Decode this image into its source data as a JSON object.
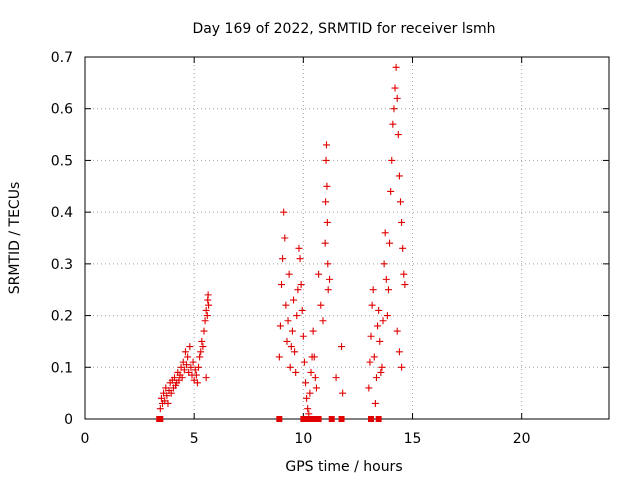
{
  "chart_data": {
    "type": "scatter",
    "title": "Day 169 of 2022, SRMTID for receiver lsmh",
    "xlabel": "GPS time / hours",
    "ylabel": "SRMTID / TECUs",
    "xlim": [
      0,
      24
    ],
    "ylim": [
      0,
      0.7
    ],
    "xticks": [
      0,
      5,
      10,
      15,
      20
    ],
    "yticks": [
      0,
      0.1,
      0.2,
      0.3,
      0.4,
      0.5,
      0.6,
      0.7
    ],
    "xtick_labels": [
      "0",
      "5",
      "10",
      "15",
      "20"
    ],
    "ytick_labels": [
      "0",
      "0.1",
      "0.2",
      "0.3",
      "0.4",
      "0.5",
      "0.6",
      "0.7"
    ],
    "grid": true,
    "marker_color": "#e00000",
    "series": [
      {
        "name": "SRMTID",
        "marker": "plus",
        "points": [
          [
            3.45,
            0.02
          ],
          [
            3.5,
            0.04
          ],
          [
            3.55,
            0.03
          ],
          [
            3.6,
            0.05
          ],
          [
            3.65,
            0.035
          ],
          [
            3.7,
            0.06
          ],
          [
            3.75,
            0.045
          ],
          [
            3.8,
            0.03
          ],
          [
            3.85,
            0.055
          ],
          [
            3.9,
            0.07
          ],
          [
            3.95,
            0.05
          ],
          [
            4.0,
            0.075
          ],
          [
            4.05,
            0.06
          ],
          [
            4.1,
            0.08
          ],
          [
            4.15,
            0.065
          ],
          [
            4.2,
            0.07
          ],
          [
            4.25,
            0.09
          ],
          [
            4.3,
            0.075
          ],
          [
            4.35,
            0.085
          ],
          [
            4.4,
            0.1
          ],
          [
            4.45,
            0.08
          ],
          [
            4.5,
            0.11
          ],
          [
            4.55,
            0.095
          ],
          [
            4.6,
            0.13
          ],
          [
            4.65,
            0.105
          ],
          [
            4.7,
            0.12
          ],
          [
            4.75,
            0.09
          ],
          [
            4.8,
            0.14
          ],
          [
            4.85,
            0.1
          ],
          [
            4.9,
            0.085
          ],
          [
            4.95,
            0.11
          ],
          [
            5.0,
            0.075
          ],
          [
            5.05,
            0.095
          ],
          [
            5.1,
            0.085
          ],
          [
            5.15,
            0.07
          ],
          [
            5.2,
            0.1
          ],
          [
            5.25,
            0.12
          ],
          [
            5.3,
            0.13
          ],
          [
            5.35,
            0.15
          ],
          [
            5.4,
            0.14
          ],
          [
            5.45,
            0.17
          ],
          [
            5.5,
            0.19
          ],
          [
            5.55,
            0.21
          ],
          [
            5.6,
            0.2
          ],
          [
            5.62,
            0.23
          ],
          [
            5.64,
            0.24
          ],
          [
            5.66,
            0.22
          ],
          [
            5.55,
            0.08
          ],
          [
            8.9,
            0.12
          ],
          [
            8.95,
            0.18
          ],
          [
            9.0,
            0.26
          ],
          [
            9.05,
            0.31
          ],
          [
            9.1,
            0.4
          ],
          [
            9.15,
            0.35
          ],
          [
            9.2,
            0.22
          ],
          [
            9.25,
            0.15
          ],
          [
            9.3,
            0.19
          ],
          [
            9.35,
            0.28
          ],
          [
            9.4,
            0.1
          ],
          [
            9.45,
            0.14
          ],
          [
            9.5,
            0.17
          ],
          [
            9.55,
            0.23
          ],
          [
            9.6,
            0.13
          ],
          [
            9.65,
            0.09
          ],
          [
            9.7,
            0.2
          ],
          [
            9.75,
            0.25
          ],
          [
            9.8,
            0.33
          ],
          [
            9.85,
            0.31
          ],
          [
            9.9,
            0.26
          ],
          [
            9.95,
            0.21
          ],
          [
            10.0,
            0.16
          ],
          [
            10.05,
            0.11
          ],
          [
            10.1,
            0.07
          ],
          [
            10.15,
            0.04
          ],
          [
            10.2,
            0.02
          ],
          [
            10.25,
            0.01
          ],
          [
            10.3,
            0.05
          ],
          [
            10.35,
            0.09
          ],
          [
            10.4,
            0.12
          ],
          [
            10.45,
            0.17
          ],
          [
            10.5,
            0.12
          ],
          [
            10.55,
            0.08
          ],
          [
            10.6,
            0.06
          ],
          [
            10.7,
            0.28
          ],
          [
            10.8,
            0.22
          ],
          [
            10.9,
            0.19
          ],
          [
            11.0,
            0.34
          ],
          [
            11.02,
            0.42
          ],
          [
            11.04,
            0.5
          ],
          [
            11.06,
            0.53
          ],
          [
            11.08,
            0.45
          ],
          [
            11.1,
            0.38
          ],
          [
            11.12,
            0.3
          ],
          [
            11.14,
            0.25
          ],
          [
            11.2,
            0.27
          ],
          [
            11.5,
            0.08
          ],
          [
            11.75,
            0.14
          ],
          [
            11.8,
            0.05
          ],
          [
            13.0,
            0.06
          ],
          [
            13.05,
            0.11
          ],
          [
            13.1,
            0.16
          ],
          [
            13.15,
            0.22
          ],
          [
            13.2,
            0.25
          ],
          [
            13.25,
            0.12
          ],
          [
            13.3,
            0.03
          ],
          [
            13.35,
            0.08
          ],
          [
            13.4,
            0.18
          ],
          [
            13.45,
            0.21
          ],
          [
            13.5,
            0.15
          ],
          [
            13.55,
            0.09
          ],
          [
            13.6,
            0.1
          ],
          [
            13.65,
            0.19
          ],
          [
            13.7,
            0.3
          ],
          [
            13.75,
            0.36
          ],
          [
            13.8,
            0.27
          ],
          [
            13.85,
            0.2
          ],
          [
            13.9,
            0.25
          ],
          [
            13.95,
            0.34
          ],
          [
            14.0,
            0.44
          ],
          [
            14.05,
            0.5
          ],
          [
            14.1,
            0.57
          ],
          [
            14.15,
            0.6
          ],
          [
            14.2,
            0.64
          ],
          [
            14.25,
            0.68
          ],
          [
            14.3,
            0.62
          ],
          [
            14.35,
            0.55
          ],
          [
            14.4,
            0.47
          ],
          [
            14.45,
            0.42
          ],
          [
            14.5,
            0.38
          ],
          [
            14.55,
            0.33
          ],
          [
            14.6,
            0.28
          ],
          [
            14.65,
            0.26
          ],
          [
            14.3,
            0.17
          ],
          [
            14.4,
            0.13
          ],
          [
            14.5,
            0.1
          ]
        ]
      },
      {
        "name": "zero",
        "marker": "square",
        "points": [
          [
            3.4,
            0
          ],
          [
            3.45,
            0
          ],
          [
            8.9,
            0
          ],
          [
            10.0,
            0
          ],
          [
            10.15,
            0
          ],
          [
            10.3,
            0
          ],
          [
            10.55,
            0
          ],
          [
            10.6,
            0
          ],
          [
            10.65,
            0
          ],
          [
            10.7,
            0
          ],
          [
            11.3,
            0
          ],
          [
            11.75,
            0
          ],
          [
            13.1,
            0
          ],
          [
            13.45,
            0
          ]
        ]
      }
    ]
  }
}
